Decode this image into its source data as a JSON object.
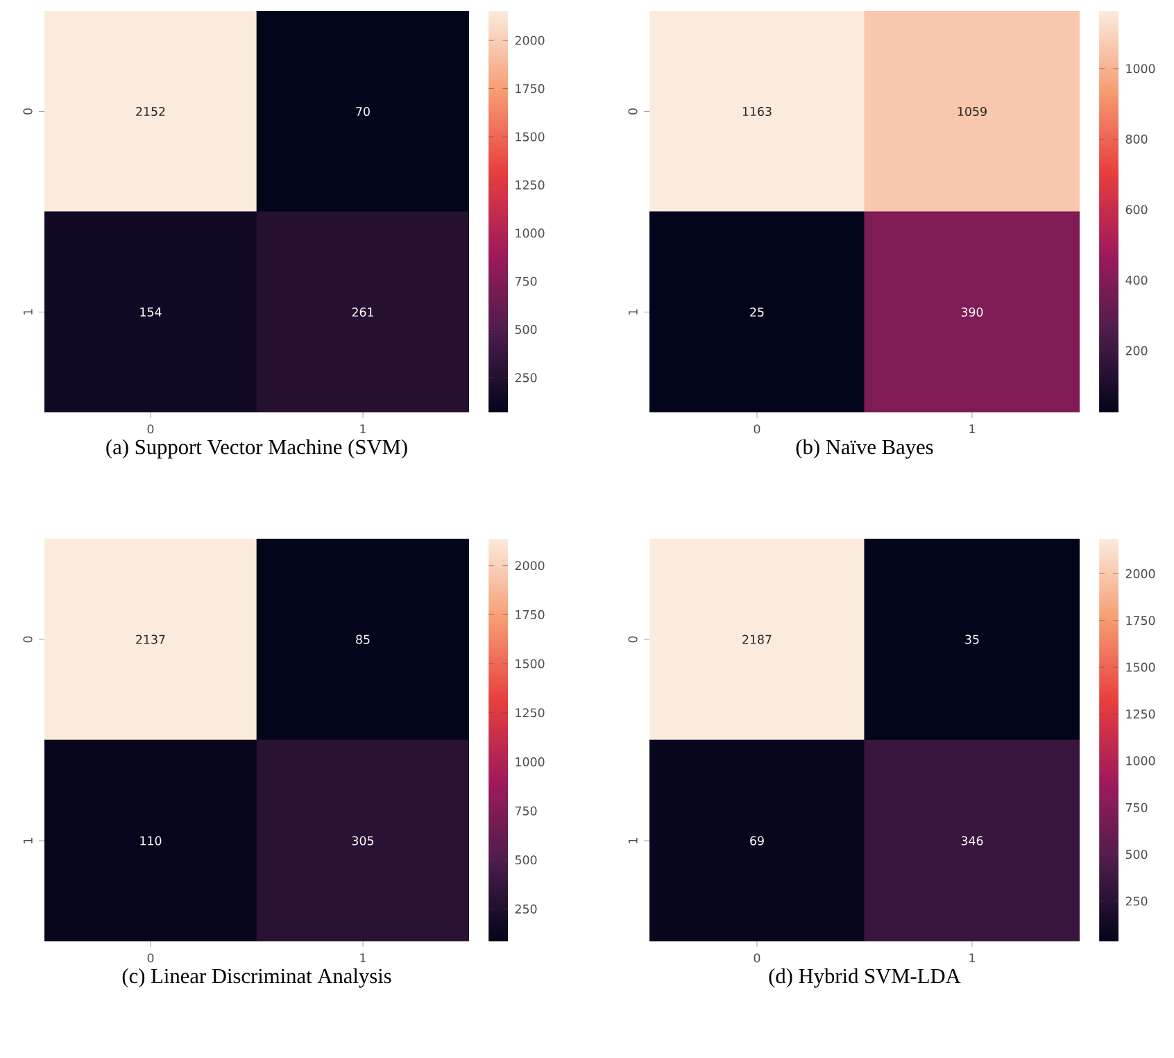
{
  "chart_data": [
    {
      "type": "heatmap",
      "title": "(a) Support Vector Machine (SVM)",
      "categories": [
        "0",
        "1"
      ],
      "y_categories": [
        "0",
        "1"
      ],
      "cells": [
        [
          2152,
          70
        ],
        [
          154,
          261
        ]
      ],
      "data_labels": true,
      "clim": [
        70,
        2152
      ],
      "cticks": [
        250,
        500,
        750,
        1000,
        1250,
        1500,
        1750,
        2000
      ]
    },
    {
      "type": "heatmap",
      "title": "(b) Naïve Bayes",
      "categories": [
        "0",
        "1"
      ],
      "y_categories": [
        "0",
        "1"
      ],
      "cells": [
        [
          1163,
          1059
        ],
        [
          25,
          390
        ]
      ],
      "data_labels": true,
      "clim": [
        25,
        1163
      ],
      "cticks": [
        200,
        400,
        600,
        800,
        1000
      ]
    },
    {
      "type": "heatmap",
      "title": "(c) Linear Discriminat Analysis",
      "categories": [
        "0",
        "1"
      ],
      "y_categories": [
        "0",
        "1"
      ],
      "cells": [
        [
          2137,
          85
        ],
        [
          110,
          305
        ]
      ],
      "data_labels": true,
      "clim": [
        85,
        2137
      ],
      "cticks": [
        250,
        500,
        750,
        1000,
        1250,
        1500,
        1750,
        2000
      ]
    },
    {
      "type": "heatmap",
      "title": "(d) Hybrid SVM-LDA",
      "categories": [
        "0",
        "1"
      ],
      "y_categories": [
        "0",
        "1"
      ],
      "cells": [
        [
          2187,
          35
        ],
        [
          69,
          346
        ]
      ],
      "data_labels": true,
      "clim": [
        35,
        2187
      ],
      "cticks": [
        250,
        500,
        750,
        1000,
        1250,
        1500,
        1750,
        2000
      ]
    }
  ]
}
